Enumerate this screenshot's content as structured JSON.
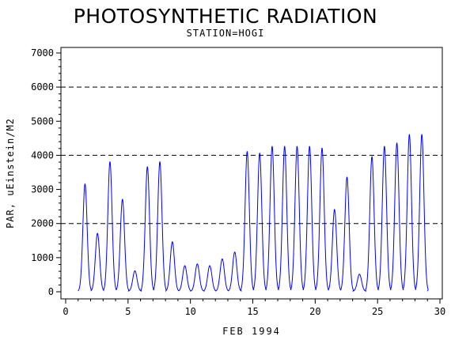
{
  "chart_data": {
    "type": "line",
    "title": "PHOTOSYNTHETIC RADIATION",
    "subtitle": "STATION=HOGI",
    "xlabel": "FEB 1994",
    "ylabel": "PAR, uEinstein/M2",
    "xlim": [
      0,
      30
    ],
    "ylim": [
      0,
      7000
    ],
    "xticks": [
      0,
      5,
      10,
      15,
      20,
      25,
      30
    ],
    "yticks": [
      0,
      1000,
      2000,
      3000,
      4000,
      5000,
      6000,
      7000
    ],
    "reference_lines": [
      2000,
      4000,
      6000
    ],
    "grid": false,
    "line_color": "#0000ff",
    "daily_peaks": [
      {
        "day": 1,
        "peak": 3150
      },
      {
        "day": 2,
        "peak": 1700
      },
      {
        "day": 3,
        "peak": 3800
      },
      {
        "day": 4,
        "peak": 2700
      },
      {
        "day": 5,
        "peak": 600
      },
      {
        "day": 6,
        "peak": 3650
      },
      {
        "day": 7,
        "peak": 3800
      },
      {
        "day": 8,
        "peak": 1450
      },
      {
        "day": 9,
        "peak": 750
      },
      {
        "day": 10,
        "peak": 800
      },
      {
        "day": 11,
        "peak": 750
      },
      {
        "day": 12,
        "peak": 950
      },
      {
        "day": 13,
        "peak": 1150
      },
      {
        "day": 14,
        "peak": 4100
      },
      {
        "day": 15,
        "peak": 4050
      },
      {
        "day": 16,
        "peak": 4250
      },
      {
        "day": 17,
        "peak": 4250
      },
      {
        "day": 18,
        "peak": 4250
      },
      {
        "day": 19,
        "peak": 4250
      },
      {
        "day": 20,
        "peak": 4200
      },
      {
        "day": 21,
        "peak": 2400
      },
      {
        "day": 22,
        "peak": 3350
      },
      {
        "day": 23,
        "peak": 500
      },
      {
        "day": 24,
        "peak": 3950
      },
      {
        "day": 25,
        "peak": 4250
      },
      {
        "day": 26,
        "peak": 4350
      },
      {
        "day": 27,
        "peak": 4600
      },
      {
        "day": 28,
        "peak": 4600
      }
    ]
  }
}
